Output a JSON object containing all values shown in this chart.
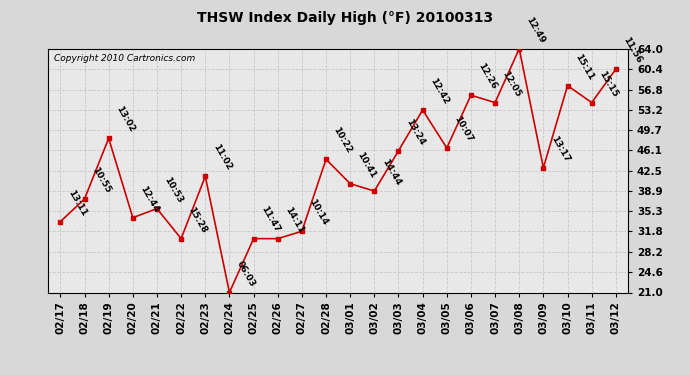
{
  "title": "THSW Index Daily High (°F) 20100313",
  "copyright": "Copyright 2010 Cartronics.com",
  "x_labels": [
    "02/17",
    "02/18",
    "02/19",
    "02/20",
    "02/21",
    "02/22",
    "02/23",
    "02/24",
    "02/25",
    "02/26",
    "02/27",
    "02/28",
    "03/01",
    "03/02",
    "03/03",
    "03/04",
    "03/05",
    "03/06",
    "03/07",
    "03/08",
    "03/09",
    "03/10",
    "03/11",
    "03/12"
  ],
  "y_values": [
    33.5,
    37.5,
    48.2,
    34.2,
    35.8,
    30.5,
    41.5,
    21.0,
    30.5,
    30.5,
    31.8,
    44.5,
    40.2,
    38.9,
    46.0,
    53.2,
    46.5,
    55.8,
    54.5,
    64.0,
    43.0,
    57.5,
    54.5,
    60.4
  ],
  "time_labels": [
    "13:11",
    "10:55",
    "13:02",
    "12:44",
    "10:53",
    "15:28",
    "11:02",
    "06:03",
    "11:47",
    "14:11",
    "10:14",
    "10:22",
    "10:41",
    "14:44",
    "13:24",
    "12:42",
    "10:07",
    "12:26",
    "12:05",
    "12:49",
    "13:17",
    "15:11",
    "15:15",
    "11:56"
  ],
  "line_color": "#cc0000",
  "marker_color": "#cc0000",
  "grid_color": "#c8c8c8",
  "background_color": "#d8d8d8",
  "plot_bg_color": "#e8e8e8",
  "yticks": [
    21.0,
    24.6,
    28.2,
    31.8,
    35.3,
    38.9,
    42.5,
    46.1,
    49.7,
    53.2,
    56.8,
    60.4,
    64.0
  ],
  "ymin": 21.0,
  "ymax": 64.0,
  "annotation_fontsize": 6.5,
  "tick_fontsize": 7.5,
  "title_fontsize": 10
}
